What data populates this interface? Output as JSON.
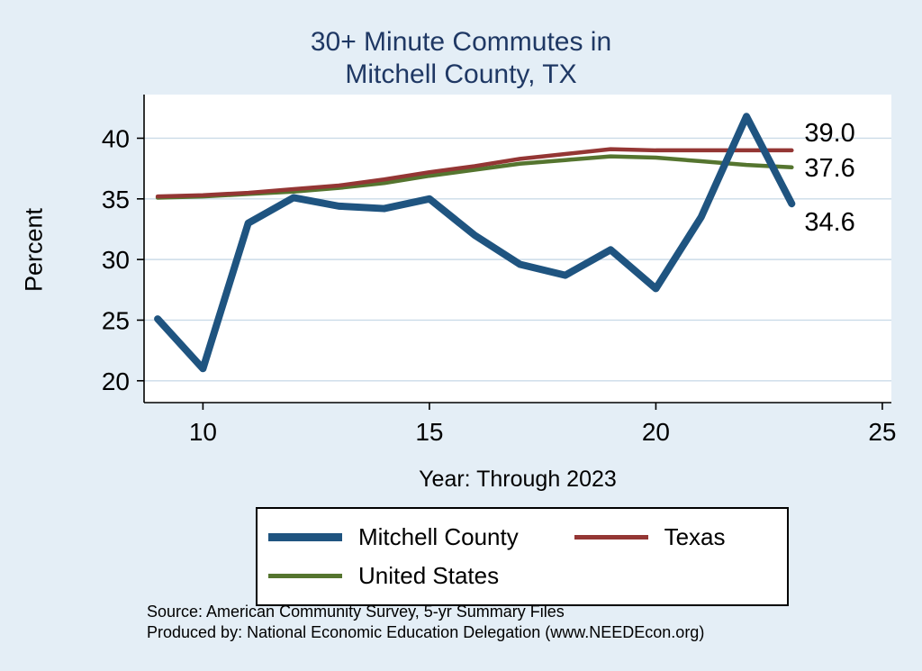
{
  "title": {
    "line1": "30+ Minute Commutes in",
    "line2": "Mitchell County, TX"
  },
  "axes": {
    "ylabel": "Percent",
    "xlabel": "Year: Through 2023"
  },
  "chart_data": {
    "type": "line",
    "title": "30+ Minute Commutes in Mitchell County, TX",
    "xlabel": "Year: Through 2023",
    "ylabel": "Percent",
    "x": [
      9,
      10,
      11,
      12,
      13,
      14,
      15,
      16,
      17,
      18,
      19,
      20,
      21,
      22,
      23
    ],
    "series": [
      {
        "name": "Mitchell County",
        "color": "#1f5480",
        "width": 8,
        "values": [
          25.1,
          21.0,
          33.0,
          35.1,
          34.4,
          34.2,
          35.0,
          32.0,
          29.6,
          28.7,
          30.8,
          27.6,
          33.5,
          41.8,
          34.6
        ]
      },
      {
        "name": "Texas",
        "color": "#943634",
        "width": 4.5,
        "values": [
          35.2,
          35.3,
          35.5,
          35.8,
          36.1,
          36.6,
          37.2,
          37.7,
          38.3,
          38.7,
          39.1,
          39.0,
          39.0,
          39.0,
          39.0
        ]
      },
      {
        "name": "United States",
        "color": "#55752f",
        "width": 4.5,
        "values": [
          35.1,
          35.2,
          35.4,
          35.6,
          35.9,
          36.3,
          36.9,
          37.4,
          37.9,
          38.2,
          38.5,
          38.4,
          38.1,
          37.8,
          37.6
        ]
      }
    ],
    "xticks": [
      10,
      15,
      20,
      25
    ],
    "yticks": [
      20,
      25,
      30,
      35,
      40
    ],
    "xlim": [
      8.7,
      25.2
    ],
    "ylim": [
      18.2,
      43.6
    ],
    "grid": "horizontal",
    "legend_position": "bottom",
    "end_labels": [
      {
        "text": "39.0",
        "value": 39.0,
        "series": "Texas"
      },
      {
        "text": "37.6",
        "value": 37.6,
        "series": "United States"
      },
      {
        "text": "34.6",
        "value": 34.6,
        "series": "Mitchell County"
      }
    ]
  },
  "legend": {
    "items": [
      {
        "label": "Mitchell County",
        "color": "#1f5480"
      },
      {
        "label": "Texas",
        "color": "#943634"
      },
      {
        "label": "United States",
        "color": "#55752f"
      }
    ]
  },
  "footer": {
    "line1": "Source: American Community Survey, 5-yr Summary Files",
    "line2": "Produced by: National Economic Education Delegation (www.NEEDEcon.org)"
  },
  "colors": {
    "background": "#e4eef6",
    "plot_background": "#ffffff",
    "grid": "#cbdbe8",
    "axis": "#000000",
    "title": "#1f3864"
  }
}
